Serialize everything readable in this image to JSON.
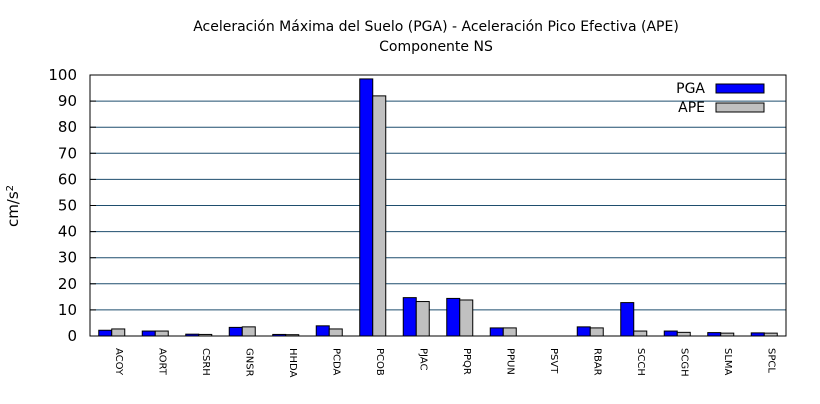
{
  "chart_data": {
    "type": "bar",
    "title": "Aceleración Máxima del Suelo (PGA) -  Aceleración Pico Efectiva (APE)",
    "subtitle": "Componente NS",
    "xlabel": "",
    "ylabel": "cm/s",
    "ylabel_superscript": "2",
    "ylim": [
      0,
      100
    ],
    "yticks": [
      0,
      10,
      20,
      30,
      40,
      50,
      60,
      70,
      80,
      90,
      100
    ],
    "grid": true,
    "legend_position": "top-right",
    "categories": [
      "ACOY",
      "AORT",
      "CSRH",
      "GNSR",
      "HHDA",
      "PCDA",
      "PCOB",
      "PJAC",
      "PPQR",
      "PPUN",
      "PSVT",
      "RBAR",
      "SCCH",
      "SCGH",
      "SLMA",
      "SPCL"
    ],
    "series": [
      {
        "name": "PGA",
        "color": "#0000ff",
        "values": [
          2.2,
          1.9,
          0.7,
          3.3,
          0.6,
          3.9,
          98.5,
          14.7,
          14.4,
          3.1,
          0.0,
          3.5,
          12.8,
          1.9,
          1.3,
          1.2
        ]
      },
      {
        "name": "APE",
        "color": "#c0c0c0",
        "values": [
          2.7,
          1.9,
          0.6,
          3.5,
          0.5,
          2.7,
          92.0,
          13.2,
          13.8,
          3.1,
          0.0,
          3.1,
          1.9,
          1.4,
          1.1,
          1.1
        ]
      }
    ]
  }
}
